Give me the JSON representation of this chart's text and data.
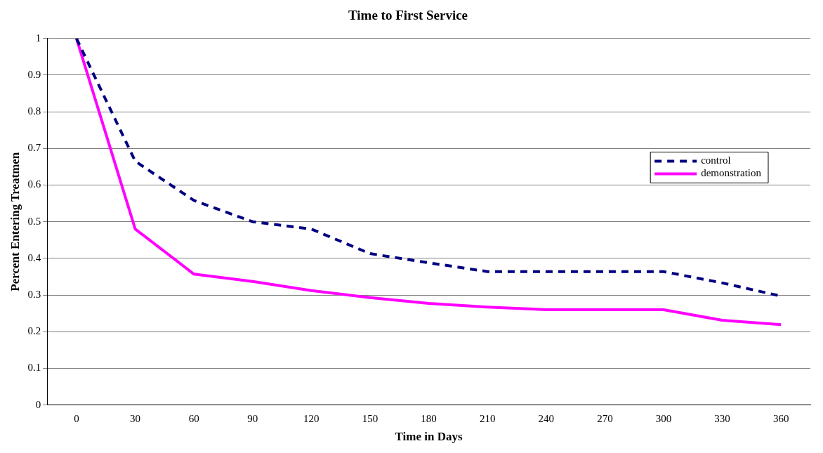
{
  "chart_data": {
    "type": "line",
    "title": "Time to First Service",
    "xlabel": "Time in Days",
    "ylabel": "Percent Entering Treatmen",
    "categories": [
      "0",
      "30",
      "60",
      "90",
      "120",
      "150",
      "180",
      "210",
      "240",
      "270",
      "300",
      "330",
      "360"
    ],
    "series": [
      {
        "name": "control",
        "color": "#000080",
        "line_style": "dashed",
        "values": [
          1.0,
          0.665,
          0.558,
          0.5,
          0.48,
          0.413,
          0.388,
          0.364,
          0.364,
          0.364,
          0.364,
          0.333,
          0.297
        ]
      },
      {
        "name": "demonstration",
        "color": "#ff00ff",
        "line_style": "solid",
        "values": [
          1.0,
          0.48,
          0.357,
          0.337,
          0.312,
          0.293,
          0.277,
          0.267,
          0.26,
          0.26,
          0.26,
          0.231,
          0.219
        ]
      }
    ],
    "ylim": [
      0,
      1
    ],
    "yticks": [
      0,
      0.1,
      0.2,
      0.3,
      0.4,
      0.5,
      0.6,
      0.7,
      0.8,
      0.9,
      1
    ],
    "grid": "y",
    "legend": "right",
    "marker": "none"
  }
}
